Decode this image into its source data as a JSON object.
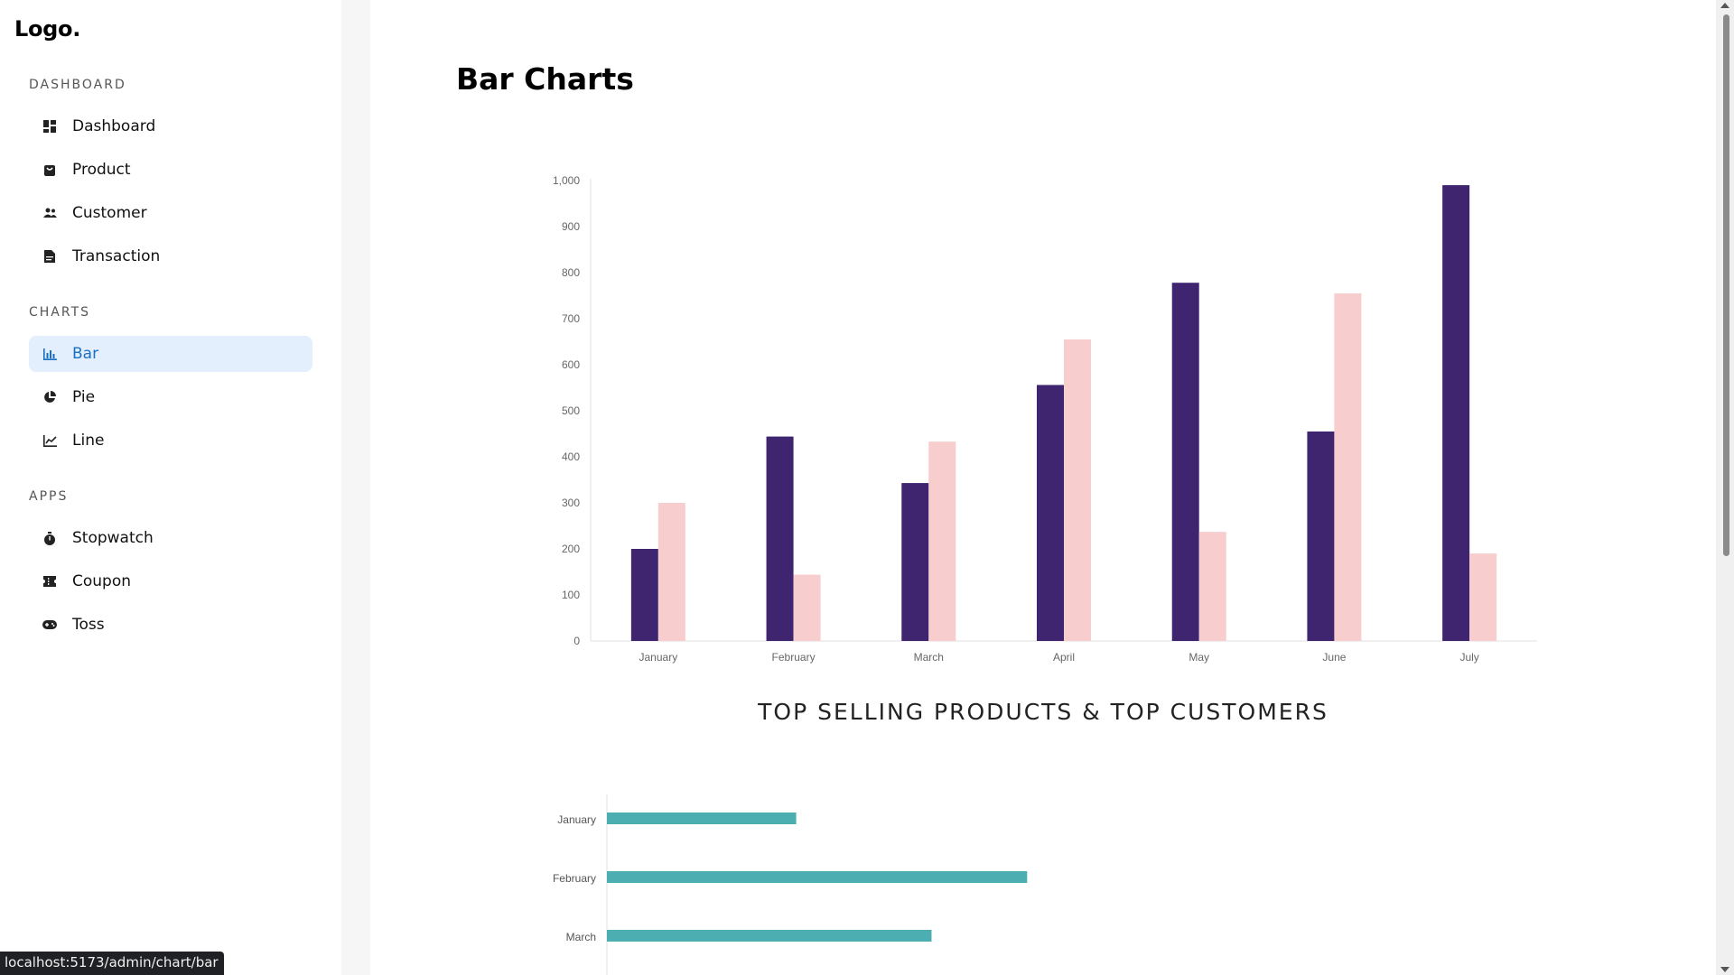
{
  "sidebar": {
    "logo": "Logo.",
    "sections": [
      {
        "title": "DASHBOARD",
        "items": [
          {
            "label": "Dashboard",
            "icon": "dashboard-icon"
          },
          {
            "label": "Product",
            "icon": "shopping-bag-icon"
          },
          {
            "label": "Customer",
            "icon": "people-icon"
          },
          {
            "label": "Transaction",
            "icon": "document-icon"
          }
        ]
      },
      {
        "title": "CHARTS",
        "items": [
          {
            "label": "Bar",
            "icon": "bar-chart-icon",
            "active": true
          },
          {
            "label": "Pie",
            "icon": "pie-chart-icon"
          },
          {
            "label": "Line",
            "icon": "line-chart-icon"
          }
        ]
      },
      {
        "title": "APPS",
        "items": [
          {
            "label": "Stopwatch",
            "icon": "stopwatch-icon"
          },
          {
            "label": "Coupon",
            "icon": "coupon-icon"
          },
          {
            "label": "Toss",
            "icon": "gamepad-icon"
          }
        ]
      }
    ]
  },
  "main": {
    "title": "Bar Charts",
    "caption": "TOP SELLING PRODUCTS & TOP CUSTOMERS"
  },
  "status_url": "localhost:5173/admin/chart/bar",
  "colors": {
    "accent": "#1a6fc4",
    "active_bg": "#e3effd",
    "series_dark": "#3f2470",
    "series_light": "#f8cdcd",
    "horizontal_bar": "#4caeb0"
  },
  "chart_data": [
    {
      "type": "bar",
      "categories": [
        "January",
        "February",
        "March",
        "April",
        "May",
        "June",
        "July"
      ],
      "series": [
        {
          "values": [
            200,
            444,
            343,
            556,
            778,
            455,
            990
          ]
        },
        {
          "values": [
            300,
            144,
            433,
            655,
            237,
            755,
            190
          ]
        }
      ],
      "ylim": [
        0,
        1000
      ],
      "yticks": [
        "0",
        "100",
        "200",
        "300",
        "400",
        "500",
        "600",
        "700",
        "800",
        "900",
        "1,000"
      ],
      "title": "",
      "xlabel": "",
      "ylabel": "",
      "grid": false
    },
    {
      "type": "bar",
      "orientation": "horizontal",
      "categories": [
        "January",
        "February",
        "March"
      ],
      "values": [
        200,
        444,
        343
      ],
      "title": "",
      "xlabel": "",
      "ylabel": "",
      "grid": false
    }
  ]
}
